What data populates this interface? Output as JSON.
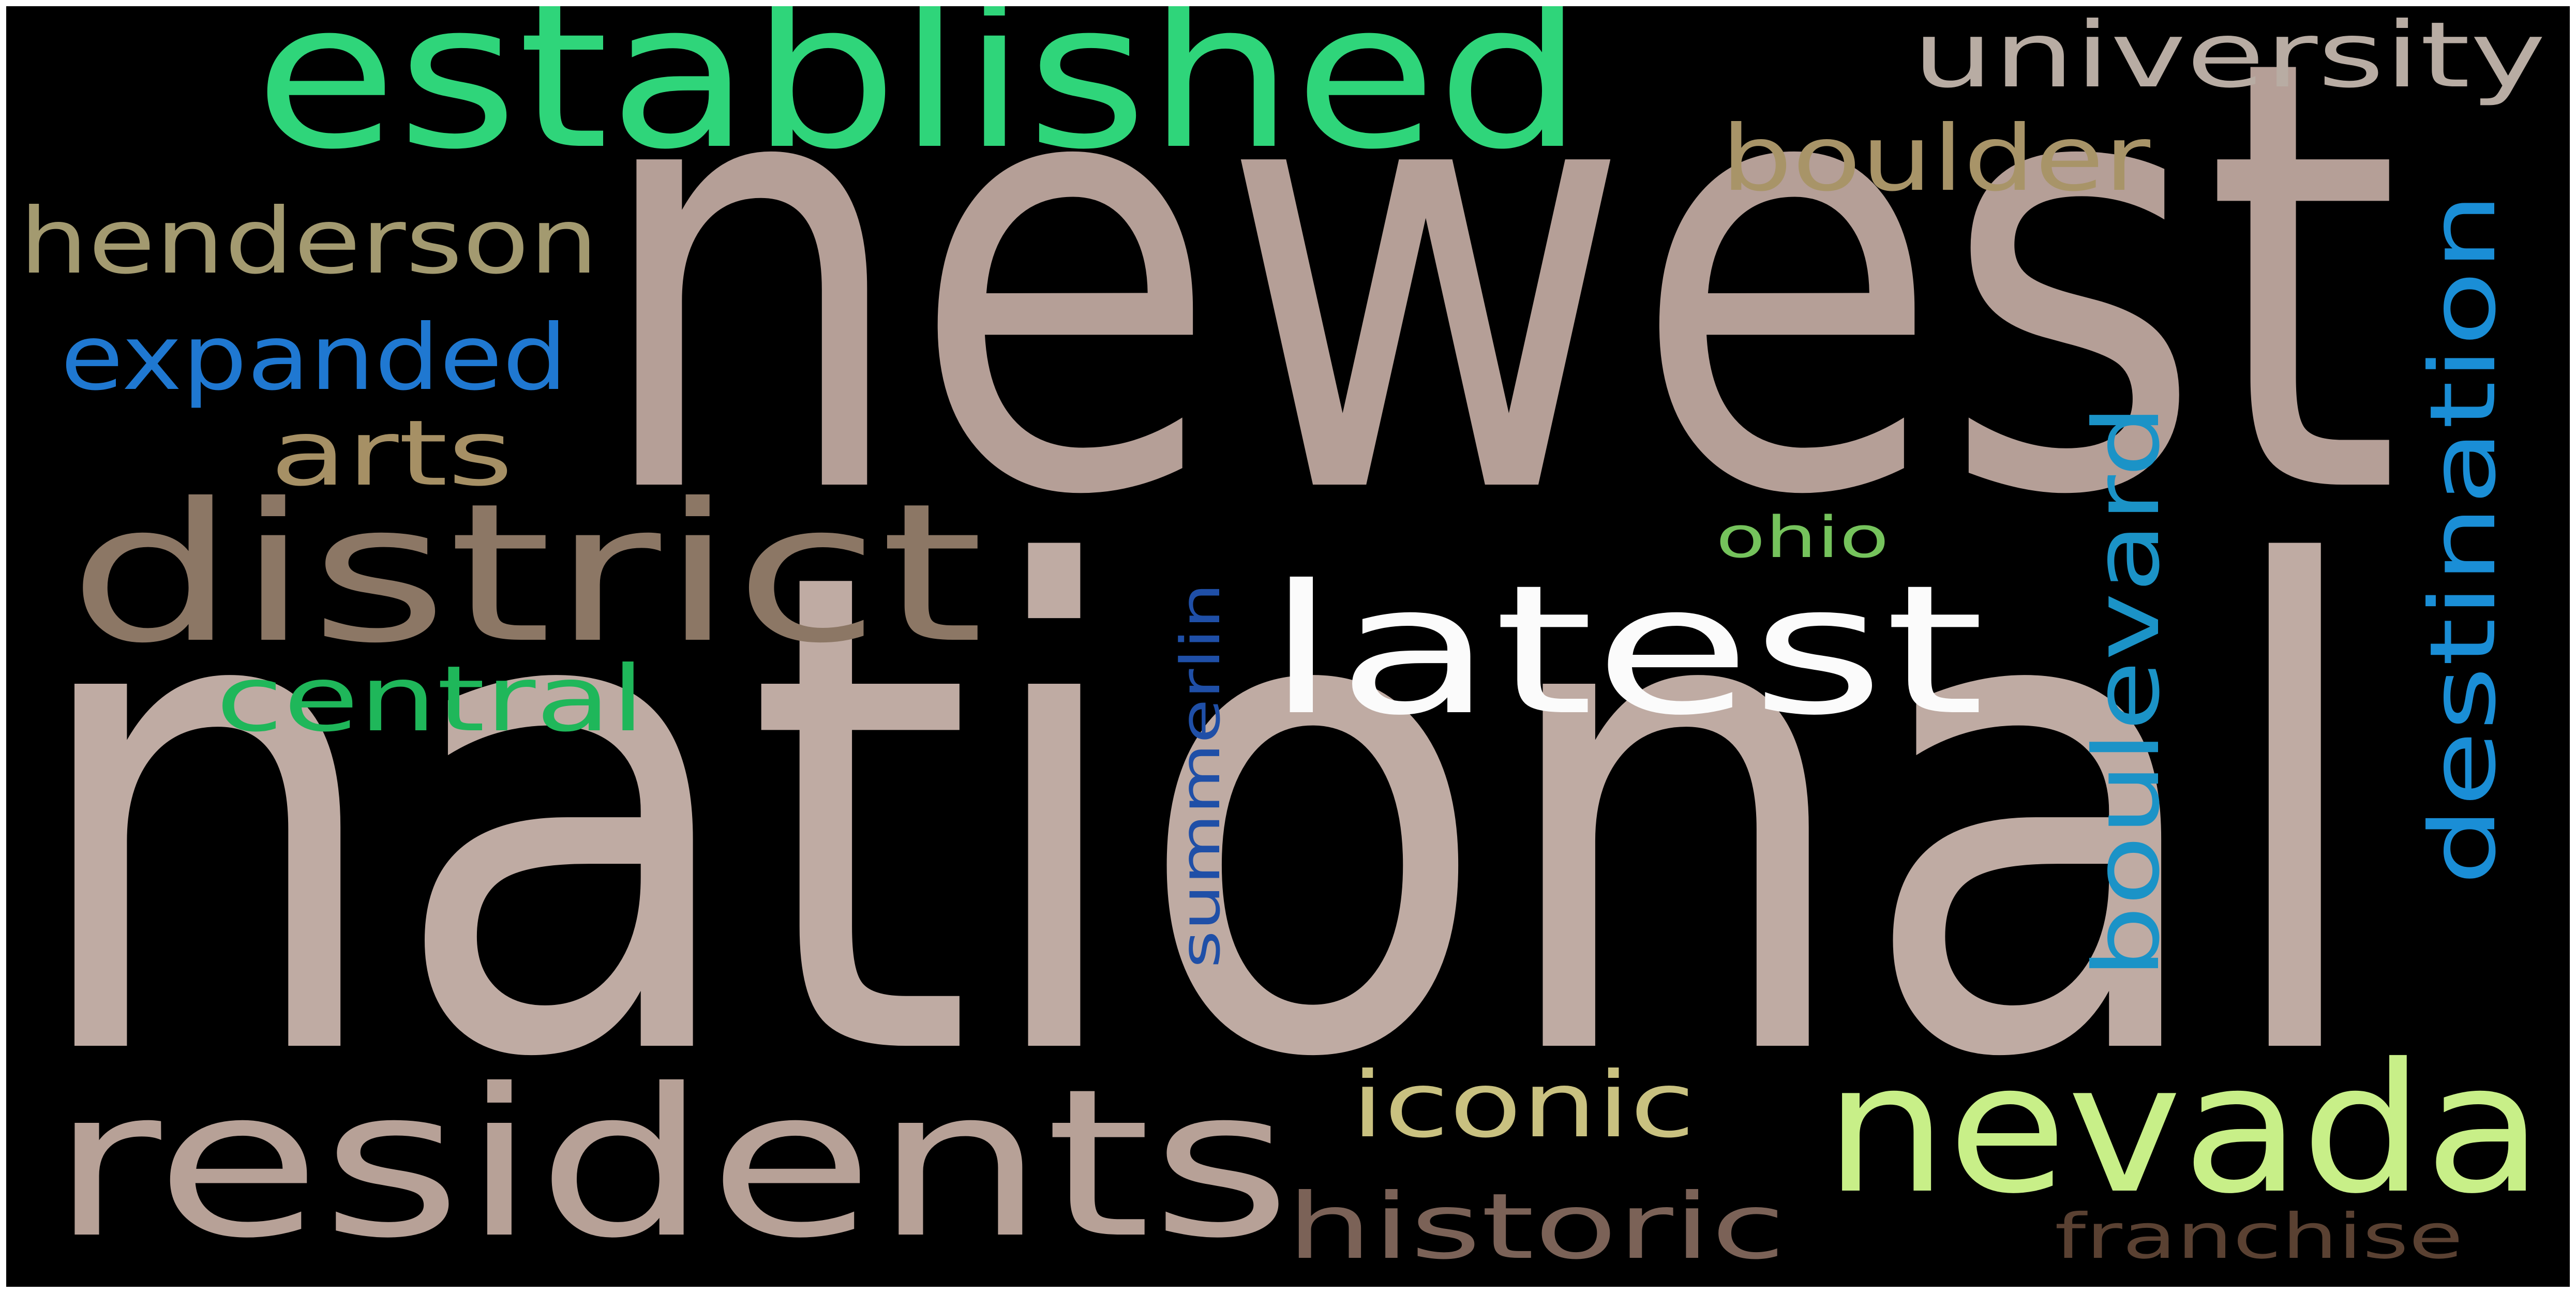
{
  "background_color": "#000000",
  "frame_color": "#ffffff",
  "words": [
    {
      "id": "newest",
      "text": "newest",
      "color": "#b59f97",
      "vertical": false
    },
    {
      "id": "national",
      "text": "national",
      "color": "#bfaba3",
      "vertical": false
    },
    {
      "id": "established",
      "text": "established",
      "color": "#2fd57a",
      "vertical": false
    },
    {
      "id": "district",
      "text": "district",
      "color": "#8c7765",
      "vertical": false
    },
    {
      "id": "residents",
      "text": "residents",
      "color": "#b7a197",
      "vertical": false
    },
    {
      "id": "latest",
      "text": "latest",
      "color": "#fbfbfb",
      "vertical": false
    },
    {
      "id": "nevada",
      "text": "nevada",
      "color": "#c8ef88",
      "vertical": false
    },
    {
      "id": "university",
      "text": "university",
      "color": "#b8aca3",
      "vertical": false
    },
    {
      "id": "boulder",
      "text": "boulder",
      "color": "#a89468",
      "vertical": false
    },
    {
      "id": "henderson",
      "text": "henderson",
      "color": "#a39a70",
      "vertical": false
    },
    {
      "id": "expanded",
      "text": "expanded",
      "color": "#1f78d1",
      "vertical": false
    },
    {
      "id": "arts",
      "text": "arts",
      "color": "#a69065",
      "vertical": false
    },
    {
      "id": "central",
      "text": "central",
      "color": "#1fb75a",
      "vertical": false
    },
    {
      "id": "iconic",
      "text": "iconic",
      "color": "#c9c180",
      "vertical": false
    },
    {
      "id": "historic",
      "text": "historic",
      "color": "#7b6257",
      "vertical": false
    },
    {
      "id": "franchise",
      "text": "franchise",
      "color": "#5a4132",
      "vertical": false
    },
    {
      "id": "ohio",
      "text": "ohio",
      "color": "#75c35c",
      "vertical": false
    },
    {
      "id": "summerlin",
      "text": "summerlin",
      "color": "#1f4fa7",
      "vertical": true
    },
    {
      "id": "boulevard",
      "text": "boulevard",
      "color": "#1b93c7",
      "vertical": true
    },
    {
      "id": "destination",
      "text": "destination",
      "color": "#1a8ed6",
      "vertical": true
    }
  ]
}
